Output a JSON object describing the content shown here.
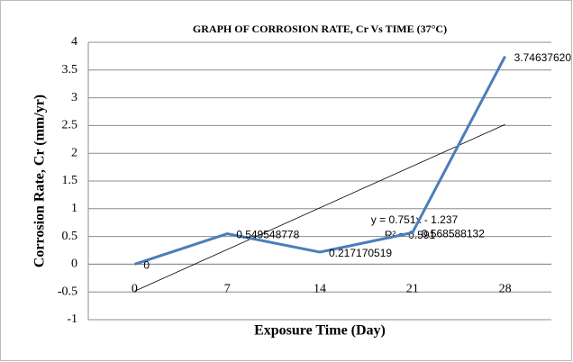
{
  "chart_data": {
    "type": "line",
    "title": "GRAPH OF CORROSION RATE, Cr Vs TIME   (37°C)",
    "x_label": "Exposure Time (Day)",
    "y_label": "Corrosion  Rate, Cr (mm/yr)",
    "categories": [
      0,
      7,
      14,
      21,
      28
    ],
    "series": [
      {
        "name": "Cr",
        "color": "#4a7ebb",
        "values": [
          0,
          0.549548778,
          0.217170519,
          0.568588132,
          3.7463762
        ],
        "value_labels": [
          "0",
          "0.549548778",
          "0.217170519",
          "0.568588132",
          "3.74637620"
        ]
      }
    ],
    "trendline": {
      "slope": 0.751,
      "intercept": -1.237,
      "equation": "y = 0.751x - 1.237",
      "r_squared": "R² = 0.591"
    },
    "ylim": [
      -1,
      4
    ],
    "yticks": [
      -1,
      -0.5,
      0,
      0.5,
      1,
      1.5,
      2,
      2.5,
      3,
      3.5,
      4
    ],
    "grid": true
  }
}
